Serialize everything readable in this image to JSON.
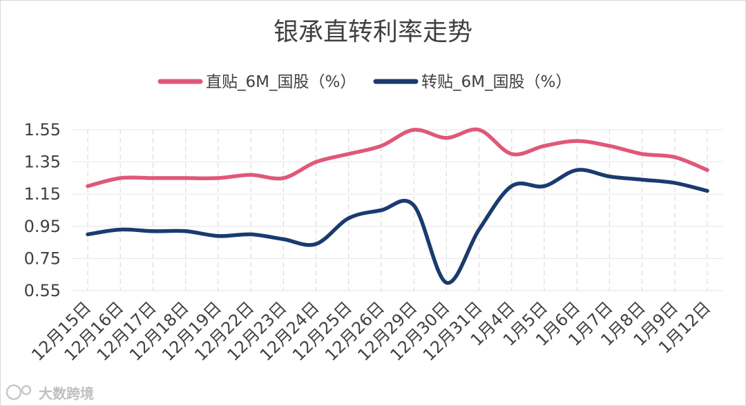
{
  "chart_data": {
    "type": "line",
    "title": "银承直转利率走势",
    "categories": [
      "12月15日",
      "12月16日",
      "12月17日",
      "12月18日",
      "12月19日",
      "12月22日",
      "12月23日",
      "12月24日",
      "12月25日",
      "12月26日",
      "12月29日",
      "12月30日",
      "12月31日",
      "1月4日",
      "1月5日",
      "1月6日",
      "1月7日",
      "1月8日",
      "1月9日",
      "1月12日"
    ],
    "series": [
      {
        "name": "直贴_6M_国股（%）",
        "color": "#e05878",
        "values": [
          1.2,
          1.25,
          1.25,
          1.25,
          1.25,
          1.27,
          1.25,
          1.35,
          1.4,
          1.45,
          1.55,
          1.5,
          1.55,
          1.4,
          1.45,
          1.48,
          1.45,
          1.4,
          1.38,
          1.3
        ]
      },
      {
        "name": "转贴_6M_国股（%）",
        "color": "#1a3b6e",
        "values": [
          0.9,
          0.93,
          0.92,
          0.92,
          0.89,
          0.9,
          0.87,
          0.84,
          1.0,
          1.05,
          1.08,
          0.6,
          0.93,
          1.2,
          1.2,
          1.3,
          1.26,
          1.24,
          1.22,
          1.17
        ]
      }
    ],
    "yticks": [
      "1.55",
      "1.35",
      "1.15",
      "0.95",
      "0.75",
      "0.55"
    ],
    "ylim": [
      0.55,
      1.55
    ],
    "xlabel": "",
    "ylabel": "",
    "legend_position": "top-center",
    "grid": true
  },
  "watermark": {
    "text": "大数跨境",
    "icon": "logo-icon"
  }
}
